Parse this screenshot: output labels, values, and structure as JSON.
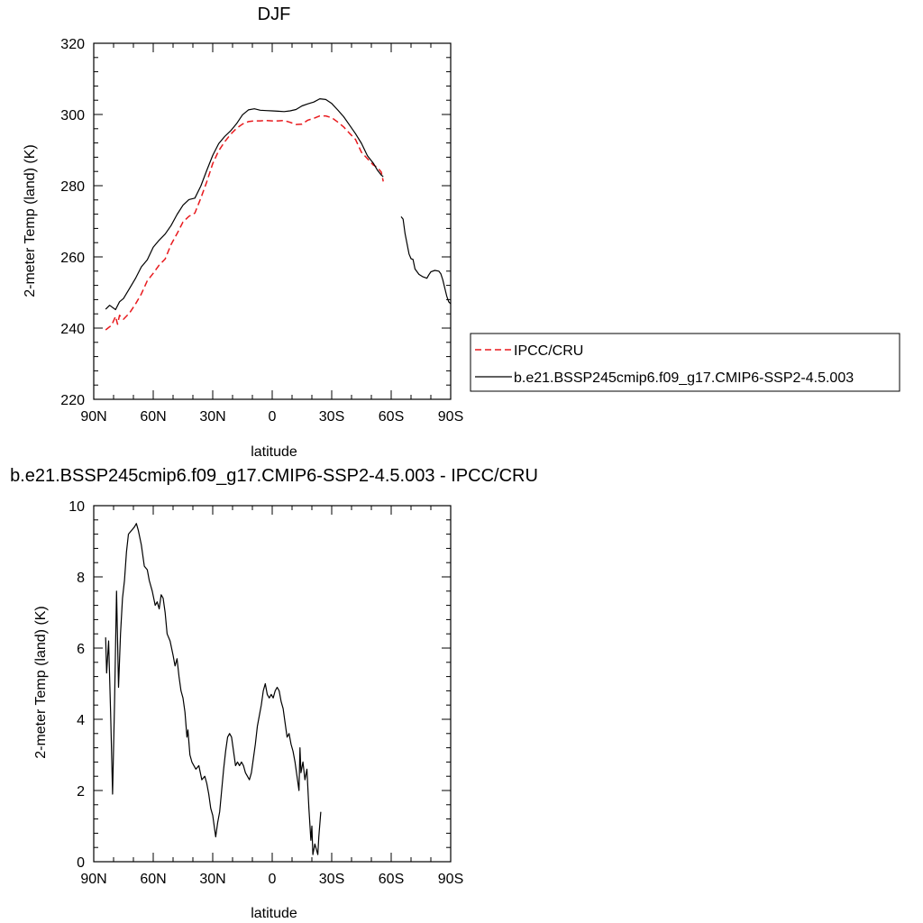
{
  "chart_data": [
    {
      "type": "line",
      "title": "DJF",
      "xlabel": "latitude",
      "ylabel": "2-meter Temp (land) (K)",
      "xlim": [
        90,
        -90
      ],
      "ylim": [
        220,
        320
      ],
      "x_ticks": [
        90,
        60,
        30,
        0,
        -30,
        -60,
        -90
      ],
      "x_tick_labels": [
        "90N",
        "60N",
        "30N",
        "0",
        "30S",
        "60S",
        "90S"
      ],
      "y_ticks": [
        220,
        240,
        260,
        280,
        300,
        320
      ],
      "y_tick_labels": [
        "220",
        "240",
        "260",
        "280",
        "300",
        "320"
      ],
      "legend_position": "right",
      "series": [
        {
          "name": "IPCC/CRU",
          "color": "#e8191d",
          "style": "dashed",
          "segments": [
            [
              [
                84,
                239.5
              ],
              [
                81,
                240.8
              ],
              [
                79,
                243.3
              ],
              [
                78,
                241.1
              ],
              [
                77,
                243.6
              ],
              [
                75,
                242.5
              ],
              [
                72,
                244.2
              ],
              [
                69,
                246.7
              ],
              [
                66,
                249.6
              ],
              [
                63,
                253.3
              ],
              [
                60,
                255.4
              ],
              [
                57,
                257.7
              ],
              [
                54,
                259.4
              ],
              [
                51,
                263.5
              ],
              [
                48,
                266.5
              ],
              [
                45,
                269.8
              ],
              [
                42,
                271.4
              ],
              [
                39,
                272.3
              ],
              [
                36,
                276.5
              ],
              [
                33,
                281.1
              ],
              [
                30,
                286.2
              ],
              [
                27,
                289.8
              ],
              [
                24,
                292.3
              ],
              [
                21,
                294.4
              ],
              [
                18,
                296.1
              ],
              [
                15,
                297.3
              ],
              [
                12,
                298.0
              ],
              [
                9,
                298.2
              ],
              [
                6,
                298.2
              ],
              [
                3,
                298.3
              ],
              [
                0,
                298.2
              ],
              [
                -3,
                298.2
              ],
              [
                -6,
                298.3
              ],
              [
                -9,
                297.8
              ],
              [
                -12,
                297.2
              ],
              [
                -15,
                297.3
              ],
              [
                -18,
                298.4
              ],
              [
                -21,
                298.9
              ],
              [
                -24,
                299.6
              ],
              [
                -27,
                299.6
              ],
              [
                -30,
                299.1
              ],
              [
                -33,
                297.9
              ],
              [
                -36,
                296.5
              ],
              [
                -39,
                294.7
              ],
              [
                -42,
                293.0
              ],
              [
                -45,
                289.4
              ],
              [
                -48,
                287.6
              ],
              [
                -51,
                285.8
              ],
              [
                -53,
                285.2
              ],
              [
                -55,
                283.8
              ],
              [
                -56,
                281.2
              ]
            ]
          ]
        },
        {
          "name": "b.e21.BSSP245cmip6.f09_g17.CMIP6-SSP2-4.5.003",
          "color": "#000000",
          "style": "solid",
          "segments": [
            [
              [
                84,
                245.3
              ],
              [
                82,
                246.4
              ],
              [
                79,
                245.2
              ],
              [
                77,
                247.4
              ],
              [
                75,
                248.3
              ],
              [
                72,
                251.1
              ],
              [
                69,
                253.9
              ],
              [
                66,
                257.2
              ],
              [
                63,
                259.2
              ],
              [
                60,
                262.7
              ],
              [
                57,
                264.7
              ],
              [
                54,
                266.4
              ],
              [
                51,
                268.8
              ],
              [
                48,
                271.9
              ],
              [
                45,
                274.5
              ],
              [
                42,
                276.1
              ],
              [
                39,
                276.5
              ],
              [
                36,
                279.9
              ],
              [
                33,
                284.3
              ],
              [
                30,
                288.5
              ],
              [
                27,
                291.8
              ],
              [
                24,
                293.8
              ],
              [
                21,
                295.4
              ],
              [
                18,
                297.4
              ],
              [
                15,
                299.9
              ],
              [
                12,
                301.3
              ],
              [
                9,
                301.6
              ],
              [
                6,
                301.2
              ],
              [
                3,
                301.1
              ],
              [
                0,
                301.0
              ],
              [
                -3,
                300.9
              ],
              [
                -6,
                300.8
              ],
              [
                -9,
                301.0
              ],
              [
                -12,
                301.4
              ],
              [
                -15,
                302.4
              ],
              [
                -18,
                303.0
              ],
              [
                -21,
                303.5
              ],
              [
                -24,
                304.4
              ],
              [
                -27,
                304.2
              ],
              [
                -30,
                303.1
              ],
              [
                -33,
                301.3
              ],
              [
                -36,
                299.4
              ],
              [
                -39,
                297.0
              ],
              [
                -42,
                294.6
              ],
              [
                -45,
                291.9
              ],
              [
                -48,
                288.4
              ],
              [
                -51,
                286.3
              ],
              [
                -53,
                284.4
              ],
              [
                -55,
                283.0
              ],
              [
                -56,
                282.5
              ]
            ],
            [
              [
                -65,
                271.3
              ],
              [
                -66,
                270.6
              ],
              [
                -67,
                266.5
              ],
              [
                -69,
                260.8
              ],
              [
                -70,
                259.5
              ],
              [
                -71,
                259.3
              ],
              [
                -72,
                256.6
              ],
              [
                -74,
                255.1
              ],
              [
                -76,
                254.4
              ],
              [
                -78,
                254.0
              ],
              [
                -79,
                255.0
              ],
              [
                -80,
                255.8
              ],
              [
                -82,
                256.2
              ],
              [
                -84,
                256.0
              ],
              [
                -85,
                255.3
              ],
              [
                -86,
                253.6
              ],
              [
                -87,
                251.3
              ],
              [
                -88,
                249.0
              ],
              [
                -89,
                247.4
              ],
              [
                -90,
                246.8
              ]
            ]
          ]
        }
      ]
    },
    {
      "type": "line",
      "title": "b.e21.BSSP245cmip6.f09_g17.CMIP6-SSP2-4.5.003 - IPCC/CRU",
      "xlabel": "latitude",
      "ylabel": "2-meter Temp (land) (K)",
      "xlim": [
        90,
        -90
      ],
      "ylim": [
        0,
        10
      ],
      "x_ticks": [
        90,
        60,
        30,
        0,
        -30,
        -60,
        -90
      ],
      "x_tick_labels": [
        "90N",
        "60N",
        "30N",
        "0",
        "30S",
        "60S",
        "90S"
      ],
      "y_ticks": [
        0,
        2,
        4,
        6,
        8,
        10
      ],
      "y_tick_labels": [
        "0",
        "2",
        "4",
        "6",
        "8",
        "10"
      ],
      "series": [
        {
          "color": "#000000",
          "style": "solid",
          "segments": [
            [
              [
                84,
                6.3
              ],
              [
                83.5,
                5.3
              ],
              [
                82.5,
                6.2
              ],
              [
                81.5,
                4.2
              ],
              [
                80.5,
                1.9
              ],
              [
                79.5,
                4.5
              ],
              [
                78.5,
                7.6
              ],
              [
                77.5,
                4.9
              ],
              [
                76.5,
                6.4
              ],
              [
                75.5,
                7.4
              ],
              [
                74.5,
                7.9
              ],
              [
                73.5,
                8.7
              ],
              [
                72.5,
                9.2
              ],
              [
                71,
                9.3
              ],
              [
                69.5,
                9.4
              ],
              [
                68.5,
                9.5
              ],
              [
                67.5,
                9.3
              ],
              [
                66,
                8.9
              ],
              [
                64.5,
                8.3
              ],
              [
                63,
                8.2
              ],
              [
                62,
                7.9
              ],
              [
                60.5,
                7.6
              ],
              [
                59,
                7.2
              ],
              [
                58,
                7.3
              ],
              [
                57,
                7.1
              ],
              [
                56,
                7.5
              ],
              [
                55,
                7.4
              ],
              [
                54,
                7.0
              ],
              [
                53,
                6.4
              ],
              [
                51.5,
                6.2
              ],
              [
                50,
                5.8
              ],
              [
                49,
                5.5
              ],
              [
                48,
                5.7
              ],
              [
                47,
                5.2
              ],
              [
                46,
                4.8
              ],
              [
                45,
                4.6
              ],
              [
                44,
                4.2
              ],
              [
                43,
                3.5
              ],
              [
                42.5,
                3.7
              ],
              [
                41.5,
                3.0
              ],
              [
                40.5,
                2.8
              ],
              [
                39.5,
                2.7
              ],
              [
                38.5,
                2.6
              ],
              [
                37,
                2.7
              ],
              [
                35.5,
                2.3
              ],
              [
                34,
                2.4
              ],
              [
                33,
                2.2
              ],
              [
                32,
                1.9
              ],
              [
                31,
                1.5
              ],
              [
                30,
                1.3
              ],
              [
                29,
                0.9
              ],
              [
                28.5,
                0.7
              ],
              [
                27.5,
                1.1
              ],
              [
                26.5,
                1.4
              ],
              [
                25.5,
                2.0
              ],
              [
                24.5,
                2.6
              ],
              [
                23.5,
                3.1
              ],
              [
                22.5,
                3.5
              ],
              [
                21.5,
                3.6
              ],
              [
                20.5,
                3.5
              ],
              [
                19.5,
                3.1
              ],
              [
                18.5,
                2.7
              ],
              [
                17.5,
                2.8
              ],
              [
                16.5,
                2.7
              ],
              [
                15.5,
                2.8
              ],
              [
                14.5,
                2.7
              ],
              [
                13.5,
                2.5
              ],
              [
                12.5,
                2.4
              ],
              [
                11.5,
                2.3
              ],
              [
                10.5,
                2.5
              ],
              [
                9.5,
                2.9
              ],
              [
                8.5,
                3.3
              ],
              [
                7.5,
                3.8
              ],
              [
                6.5,
                4.1
              ],
              [
                5.5,
                4.4
              ],
              [
                4.5,
                4.8
              ],
              [
                3.5,
                5.0
              ],
              [
                2.5,
                4.7
              ],
              [
                1.5,
                4.6
              ],
              [
                0.5,
                4.7
              ],
              [
                -0.5,
                4.6
              ],
              [
                -1.5,
                4.8
              ],
              [
                -2.5,
                4.9
              ],
              [
                -3.5,
                4.8
              ],
              [
                -4.5,
                4.5
              ],
              [
                -5.5,
                4.3
              ],
              [
                -6.5,
                3.9
              ],
              [
                -7.5,
                3.5
              ],
              [
                -8.5,
                3.6
              ],
              [
                -9.5,
                3.3
              ],
              [
                -10.5,
                3.1
              ],
              [
                -11.5,
                2.8
              ],
              [
                -12.5,
                2.4
              ],
              [
                -13.5,
                2.0
              ],
              [
                -14,
                3.2
              ],
              [
                -14.5,
                2.5
              ],
              [
                -15.5,
                2.8
              ],
              [
                -16.5,
                2.3
              ],
              [
                -17.5,
                2.6
              ],
              [
                -18.5,
                1.5
              ],
              [
                -19.5,
                0.6
              ],
              [
                -20,
                1.0
              ],
              [
                -20.5,
                0.2
              ],
              [
                -21.5,
                0.5
              ],
              [
                -22.5,
                0.3
              ],
              [
                -23,
                0.2
              ],
              [
                -23.5,
                0.7
              ],
              [
                -24.5,
                1.4
              ]
            ]
          ]
        }
      ]
    }
  ]
}
